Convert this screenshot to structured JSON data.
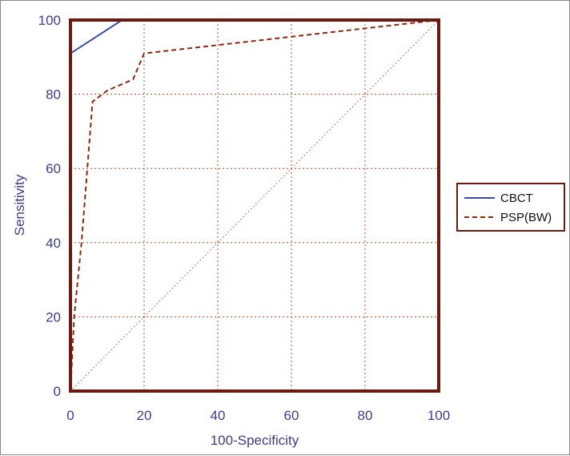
{
  "chart_data": {
    "type": "line",
    "xlabel": "100-Specificity",
    "ylabel": "Sensitivity",
    "xlim": [
      0,
      100
    ],
    "ylim": [
      0,
      100
    ],
    "xticks": [
      "0",
      "20",
      "40",
      "60",
      "80",
      "100"
    ],
    "yticks": [
      "0",
      "20",
      "40",
      "60",
      "80",
      "100"
    ],
    "grid": true,
    "legend_position": "right",
    "reference_line": {
      "points": [
        [
          0,
          0
        ],
        [
          100,
          100
        ]
      ],
      "style": "dotted",
      "color": "#b4502f"
    },
    "series": [
      {
        "name": "CBCT",
        "color": "#3d4fa3",
        "style": "solid",
        "points": [
          [
            0,
            0
          ],
          [
            0,
            91
          ],
          [
            14,
            100
          ],
          [
            100,
            100
          ]
        ]
      },
      {
        "name": "PSP(BW)",
        "color": "#8b2a10",
        "style": "dashed",
        "points": [
          [
            0,
            0
          ],
          [
            1,
            20
          ],
          [
            3,
            40
          ],
          [
            6,
            78
          ],
          [
            10,
            81
          ],
          [
            17,
            84
          ],
          [
            20,
            91
          ],
          [
            100,
            100
          ]
        ]
      }
    ]
  },
  "colors": {
    "plot_border": "#6b1a12",
    "grid": "#b4502f"
  }
}
